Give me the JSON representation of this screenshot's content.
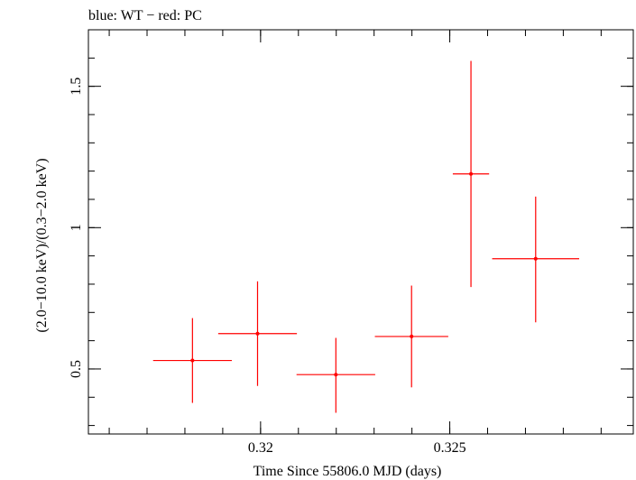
{
  "chart_data": {
    "type": "scatter",
    "title": "blue: WT − red: PC",
    "xlabel": "Time Since 55806.0 MJD (days)",
    "ylabel": "(2.0−10.0 keV)/(0.3−2.0 keV)",
    "xlim": [
      0.31545,
      0.32985
    ],
    "ylim": [
      0.27,
      1.7
    ],
    "x_ticks": [
      {
        "value": 0.32,
        "label": "0.32"
      },
      {
        "value": 0.325,
        "label": "0.325"
      }
    ],
    "y_ticks": [
      {
        "value": 0.5,
        "label": "0.5"
      },
      {
        "value": 1,
        "label": "1"
      },
      {
        "value": 1.5,
        "label": "1.5"
      }
    ],
    "grid": false,
    "series": [
      {
        "color": "#ff0000",
        "points": [
          {
            "x": 0.3182,
            "xerr": 0.00104,
            "y": 0.53,
            "ylo": 0.38,
            "yhi": 0.68
          },
          {
            "x": 0.31992,
            "xerr": 0.00104,
            "y": 0.625,
            "ylo": 0.44,
            "yhi": 0.81
          },
          {
            "x": 0.32199,
            "xerr": 0.00104,
            "y": 0.48,
            "ylo": 0.345,
            "yhi": 0.61
          },
          {
            "x": 0.32399,
            "xerr": 0.00097,
            "y": 0.615,
            "ylo": 0.435,
            "yhi": 0.795
          },
          {
            "x": 0.32556,
            "xerr": 0.00048,
            "y": 1.19,
            "ylo": 0.79,
            "yhi": 1.59
          },
          {
            "x": 0.32727,
            "xerr": 0.00115,
            "y": 0.89,
            "ylo": 0.665,
            "yhi": 1.11
          }
        ]
      }
    ]
  }
}
